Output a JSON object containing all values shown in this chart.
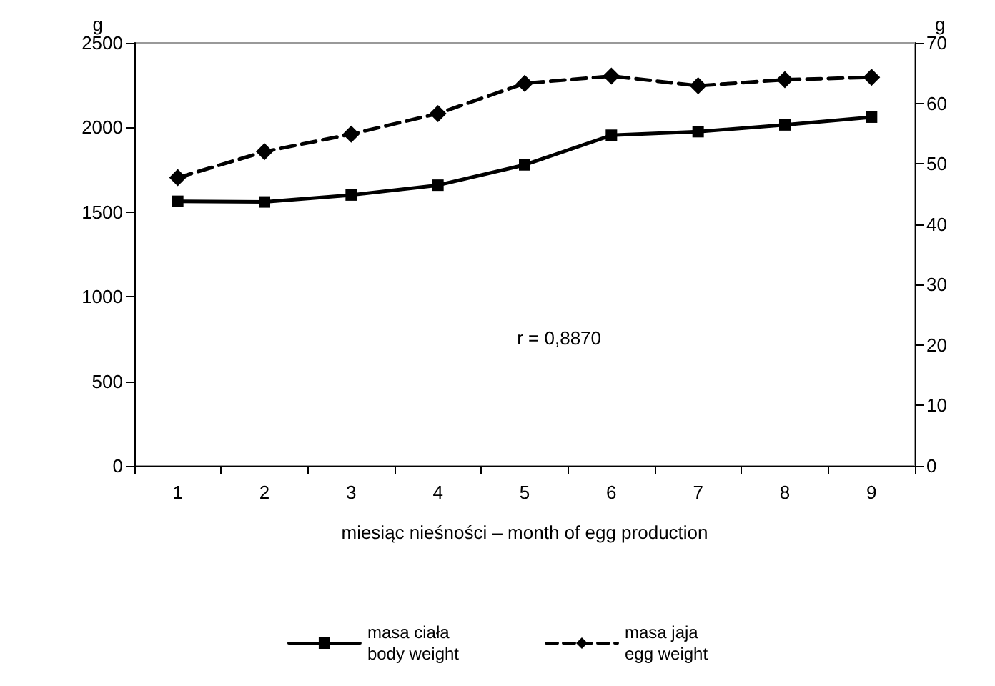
{
  "chart_data": {
    "type": "line",
    "xlabel": "miesiąc nieśności – month of egg production",
    "ylabel": "g",
    "y2label": "g",
    "categories": [
      "1",
      "2",
      "3",
      "4",
      "5",
      "6",
      "7",
      "8",
      "9"
    ],
    "series": [
      {
        "name": "masa ciała\nbody weight",
        "color": "#000000",
        "marker": "square",
        "line_style": "solid",
        "values": [
          1564,
          1560,
          1601,
          1659,
          1779,
          1954,
          1975,
          2015,
          2061
        ]
      },
      {
        "name": "masa jaja\negg weight",
        "color": "#000000",
        "marker": "diamond",
        "line_style": "dashed",
        "axis": "y2",
        "values": [
          47.7,
          52.0,
          54.9,
          58.3,
          63.3,
          64.5,
          62.9,
          63.9,
          64.3
        ]
      }
    ],
    "ylim": [
      0,
      2500
    ],
    "yticks": [
      0,
      500,
      1000,
      1500,
      2000,
      2500
    ],
    "y2lim": [
      0,
      70
    ],
    "y2ticks": [
      0,
      10,
      20,
      30,
      40,
      50,
      60,
      70
    ],
    "annotations": [
      "r = 0,8870"
    ],
    "grid": false,
    "legend": "bottom"
  }
}
